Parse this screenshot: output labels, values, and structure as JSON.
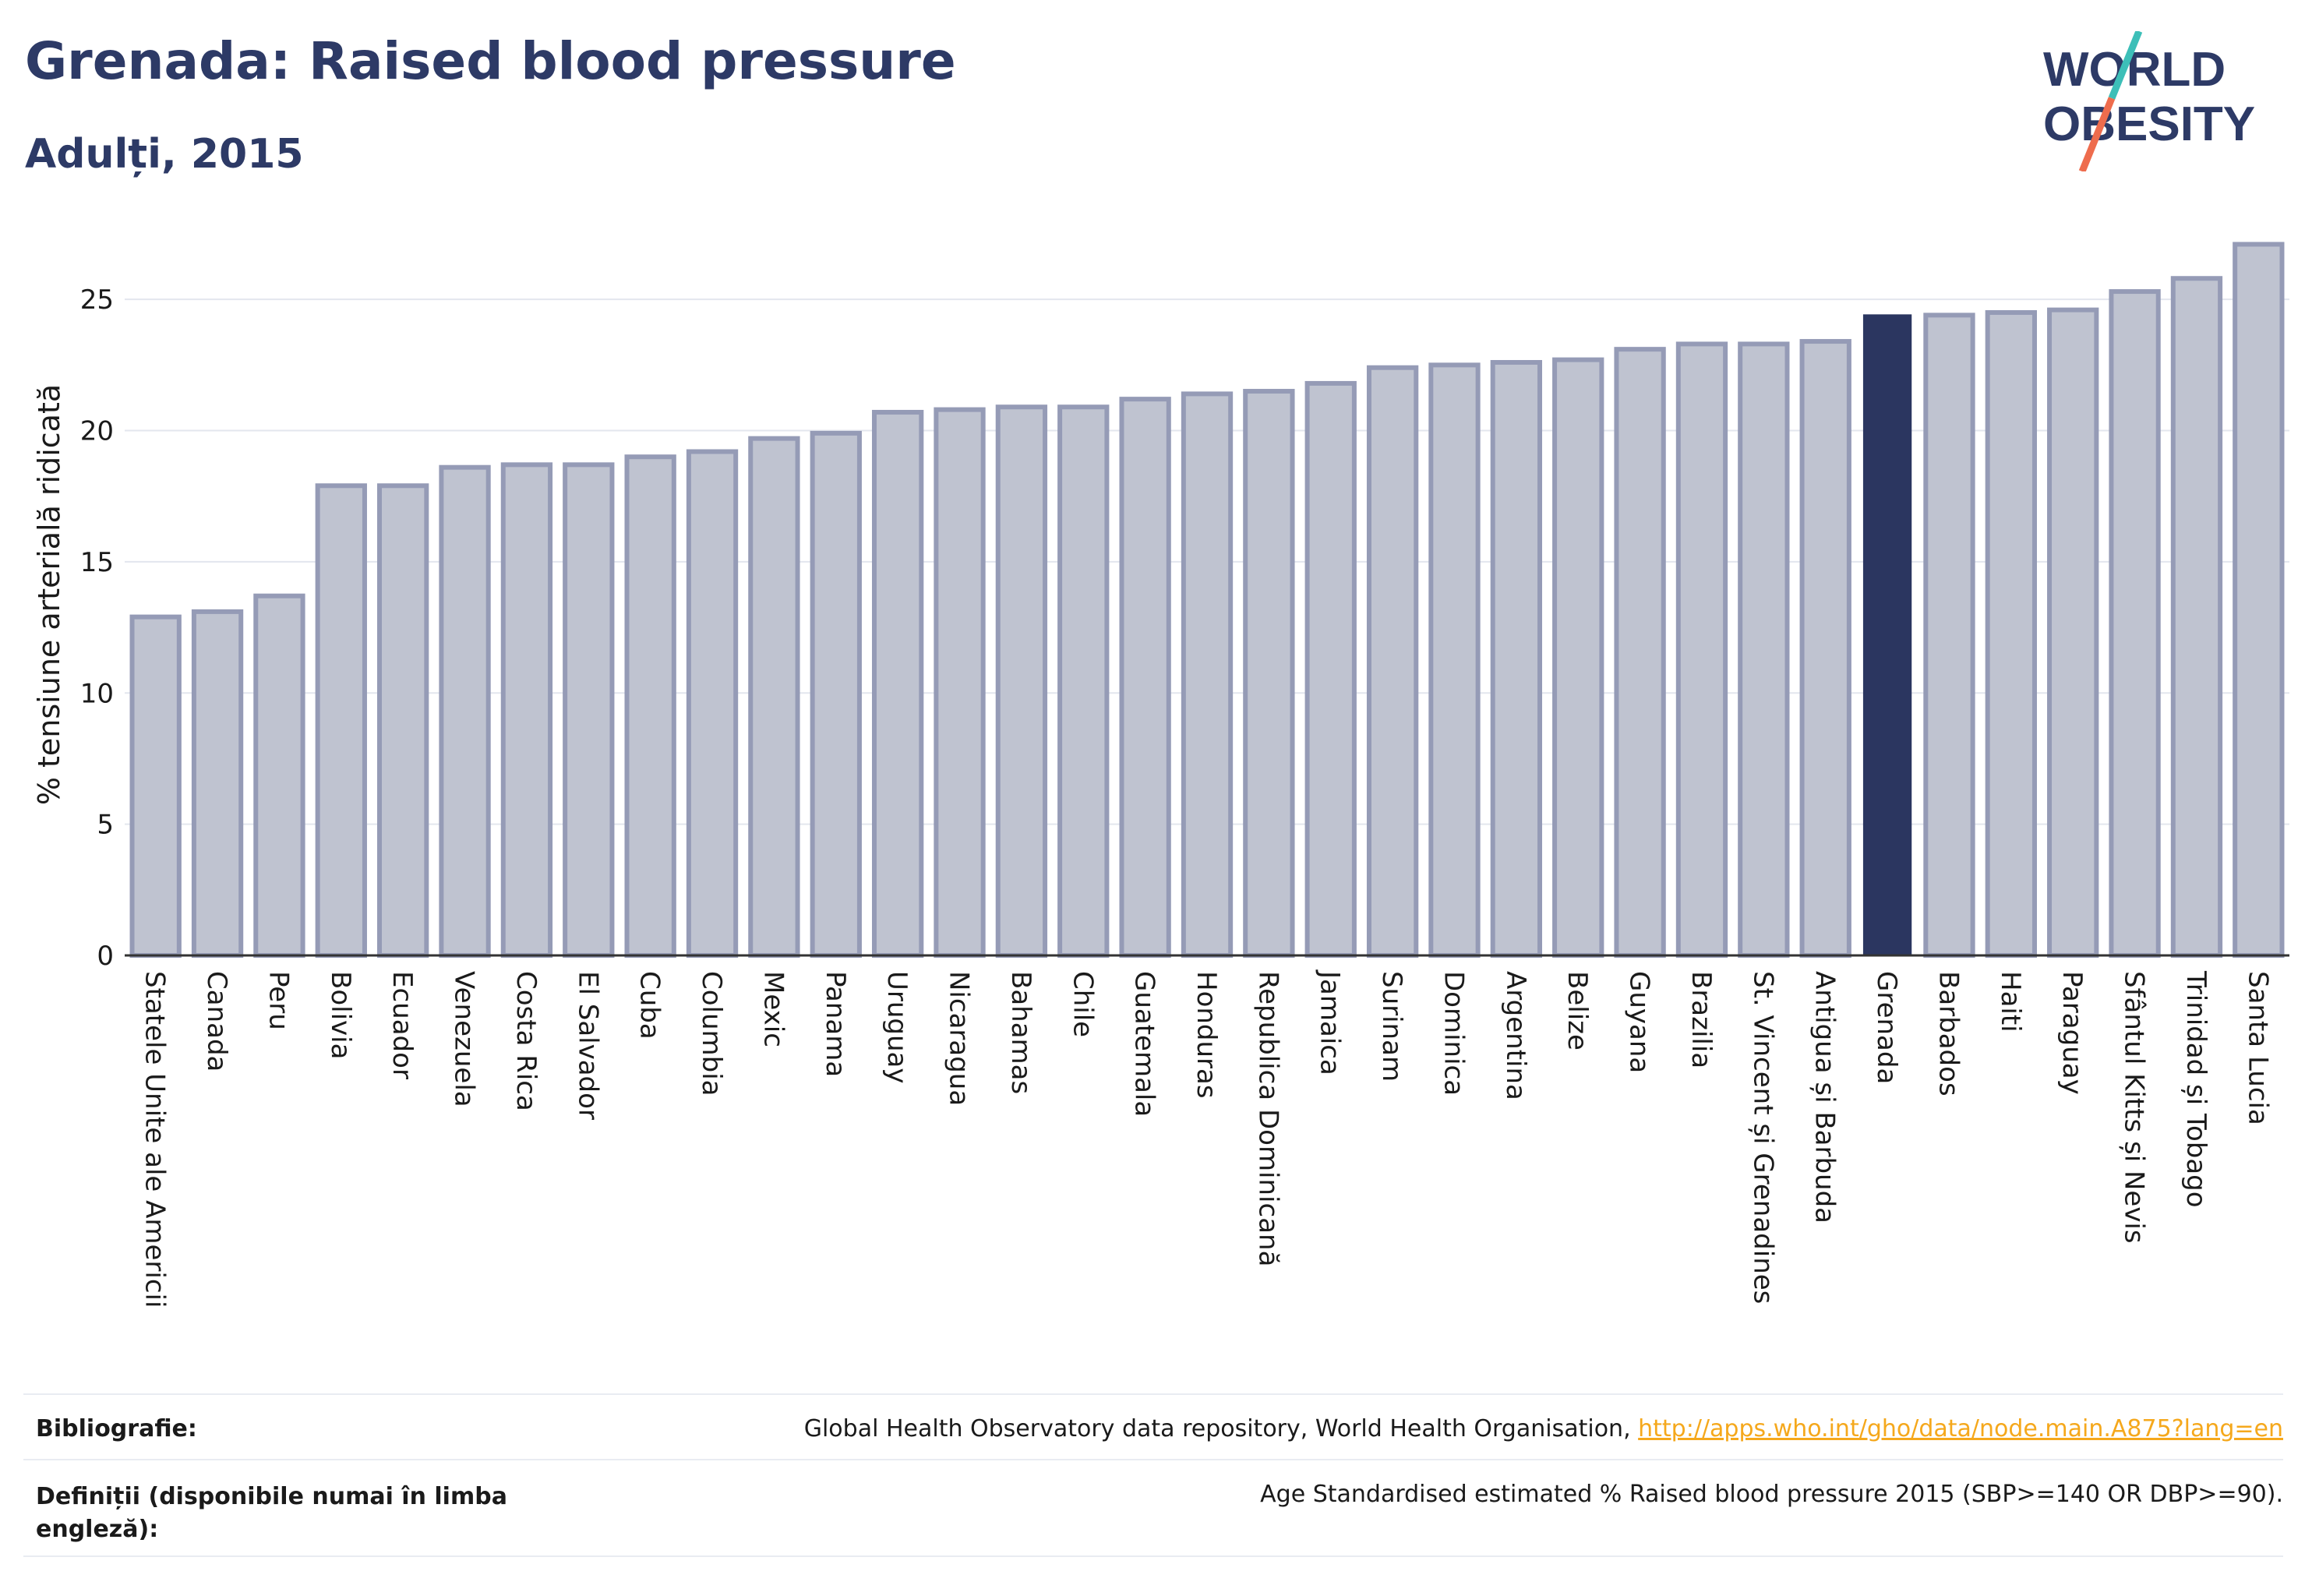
{
  "header": {
    "title": "Grenada: Raised blood pressure",
    "subtitle": "Adulți, 2015"
  },
  "logo": {
    "line1": "WORLD",
    "line2": "OBESITY",
    "colors": {
      "text": "#2d3a66",
      "slash_top": "#3dbfb8",
      "slash_bottom": "#ee6c4d"
    }
  },
  "chart_data": {
    "type": "bar",
    "ylabel": "% tensiune arterială ridicată",
    "ylim": [
      0,
      27.5
    ],
    "yticks": [
      0,
      5,
      10,
      15,
      20,
      25
    ],
    "grid": true,
    "highlight": "Grenada",
    "colors": {
      "bar": "#bfc3d0",
      "bar_border": "#959bb6",
      "highlight": "#2b3660",
      "grid": "#e3e6ee"
    },
    "categories": [
      "Statele Unite ale Americii",
      "Canada",
      "Peru",
      "Bolivia",
      "Ecuador",
      "Venezuela",
      "Costa Rica",
      "El Salvador",
      "Cuba",
      "Columbia",
      "Mexic",
      "Panama",
      "Uruguay",
      "Nicaragua",
      "Bahamas",
      "Chile",
      "Guatemala",
      "Honduras",
      "Republica Dominicană",
      "Jamaica",
      "Surinam",
      "Dominica",
      "Argentina",
      "Belize",
      "Guyana",
      "Brazilia",
      "St. Vincent și Grenadines",
      "Antigua și Barbuda",
      "Grenada",
      "Barbados",
      "Haiti",
      "Paraguay",
      "Sfântul Kitts și Nevis",
      "Trinidad și Tobago",
      "Santa Lucia"
    ],
    "values": [
      12.9,
      13.1,
      13.7,
      17.9,
      17.9,
      18.6,
      18.7,
      18.7,
      19.0,
      19.2,
      19.7,
      19.9,
      20.7,
      20.8,
      20.9,
      20.9,
      21.2,
      21.4,
      21.5,
      21.8,
      22.4,
      22.5,
      22.6,
      22.7,
      23.1,
      23.3,
      23.3,
      23.4,
      24.4,
      24.4,
      24.5,
      24.6,
      25.3,
      25.8,
      27.1
    ]
  },
  "footer": {
    "bibliography_label": "Bibliografie:",
    "bibliography_text": "Global Health Observatory data repository, World Health Organisation, ",
    "bibliography_link": "http://apps.who.int/gho/data/node.main.A875?lang=en",
    "definitions_label_line1": "Definiții (disponibile numai în limba",
    "definitions_label_line2": "engleză):",
    "definitions_text": "Age Standardised estimated % Raised blood pressure 2015 (SBP>=140 OR DBP>=90)."
  }
}
